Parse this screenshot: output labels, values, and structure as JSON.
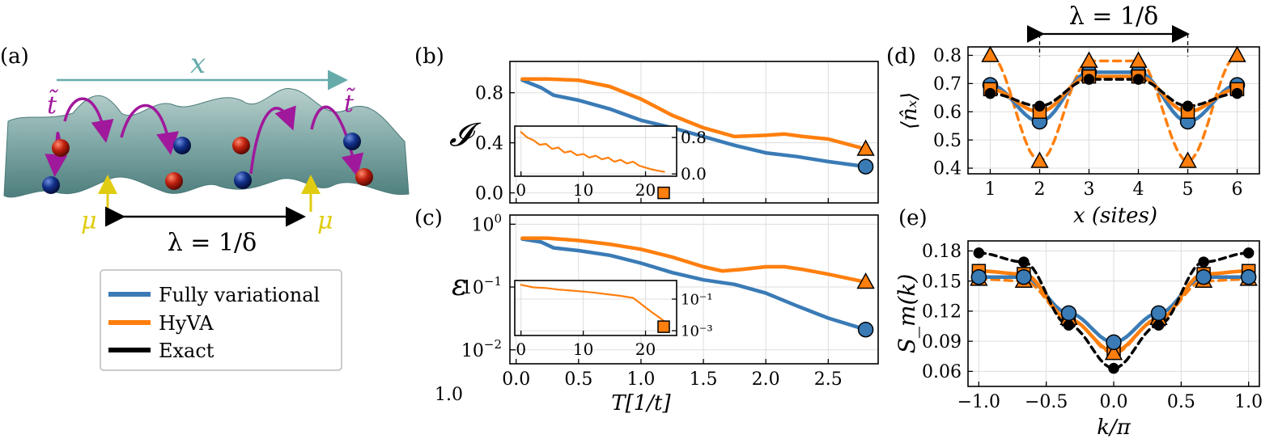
{
  "colors": {
    "fully_variational": "#3a7bb6",
    "hyva": "#ff7f0e",
    "exact": "#000000",
    "surface": "#7fa8a6",
    "x_arrow": "#66aaaa",
    "hopping": "#a0189c",
    "mu": "#e0cc10",
    "red_ball": "#c0200e",
    "blue_ball": "#12308a"
  },
  "panel_labels": {
    "a": "(a)",
    "b": "(b)",
    "c": "(c)",
    "d": "(d)",
    "e": "(e)"
  },
  "panel_a": {
    "x_label": "x",
    "hopping_label": "t̃",
    "mu_label": "μ",
    "wavelength_label": "λ = 1/δ",
    "legend": [
      "Fully variational",
      "HyVA",
      "Exact"
    ]
  },
  "stray_text": "1.0",
  "chart_data": [
    {
      "panel": "b",
      "type": "line",
      "ylabel": "𝓘",
      "xlim": [
        -0.05,
        2.9
      ],
      "ylim": [
        -0.08,
        1.05
      ],
      "yticks": [
        "0.0",
        "0.4",
        "0.8"
      ],
      "series": [
        {
          "name": "Fully variational",
          "x": [
            0.05,
            0.2,
            0.3,
            0.5,
            0.75,
            1.0,
            1.25,
            1.5,
            1.75,
            2.0,
            2.25,
            2.5,
            2.8
          ],
          "y": [
            0.9,
            0.84,
            0.78,
            0.74,
            0.67,
            0.58,
            0.52,
            0.45,
            0.38,
            0.32,
            0.29,
            0.25,
            0.21
          ]
        },
        {
          "name": "HyVA",
          "x": [
            0.05,
            0.25,
            0.5,
            0.75,
            1.0,
            1.25,
            1.5,
            1.75,
            2.0,
            2.15,
            2.3,
            2.5,
            2.8
          ],
          "y": [
            0.91,
            0.91,
            0.9,
            0.85,
            0.75,
            0.62,
            0.52,
            0.45,
            0.46,
            0.47,
            0.45,
            0.43,
            0.35
          ]
        }
      ],
      "end_markers": [
        {
          "series": "HyVA",
          "x": 2.8,
          "y": 0.35,
          "shape": "triangle"
        },
        {
          "series": "Fully variational",
          "x": 2.8,
          "y": 0.21,
          "shape": "circle"
        }
      ],
      "inset": {
        "xlim": [
          -1,
          25
        ],
        "ylim": [
          -0.05,
          1.05
        ],
        "xticks": [
          "0",
          "10",
          "20"
        ],
        "yticks": [
          "0.0",
          "0.8"
        ],
        "series": [
          {
            "name": "HyVA",
            "x": [
              0,
              1,
              2,
              3,
              4,
              5,
              6,
              7,
              8,
              9,
              10,
              11,
              12,
              13,
              14,
              15,
              16,
              17,
              18,
              19,
              20,
              21,
              22,
              23
            ],
            "y": [
              0.92,
              0.8,
              0.74,
              0.64,
              0.66,
              0.55,
              0.58,
              0.47,
              0.5,
              0.41,
              0.44,
              0.36,
              0.4,
              0.32,
              0.36,
              0.27,
              0.31,
              0.23,
              0.27,
              0.18,
              0.14,
              0.1,
              0.07,
              0.05
            ]
          }
        ],
        "end_marker": {
          "x": 23.5,
          "y": 0.04,
          "shape": "square"
        }
      }
    },
    {
      "panel": "c",
      "type": "line",
      "ylabel": "ε",
      "yscale": "log",
      "xlabel": "T[1/t]",
      "xlim": [
        -0.05,
        2.9
      ],
      "ylim": [
        0.006,
        1.4
      ],
      "xticks": [
        "0.0",
        "0.5",
        "1.0",
        "1.5",
        "2.0",
        "2.5"
      ],
      "series": [
        {
          "name": "Fully variational",
          "x": [
            0.05,
            0.2,
            0.3,
            0.5,
            0.75,
            1.0,
            1.25,
            1.5,
            1.75,
            2.0,
            2.25,
            2.5,
            2.8
          ],
          "y": [
            0.58,
            0.52,
            0.42,
            0.38,
            0.32,
            0.24,
            0.17,
            0.13,
            0.11,
            0.08,
            0.05,
            0.032,
            0.021
          ]
        },
        {
          "name": "HyVA",
          "x": [
            0.05,
            0.25,
            0.5,
            0.75,
            1.0,
            1.25,
            1.5,
            1.65,
            1.8,
            2.0,
            2.15,
            2.3,
            2.5,
            2.8
          ],
          "y": [
            0.6,
            0.6,
            0.55,
            0.48,
            0.4,
            0.3,
            0.21,
            0.18,
            0.19,
            0.21,
            0.21,
            0.19,
            0.16,
            0.12
          ]
        }
      ],
      "end_markers": [
        {
          "series": "HyVA",
          "x": 2.8,
          "y": 0.12,
          "shape": "triangle"
        },
        {
          "series": "Fully variational",
          "x": 2.8,
          "y": 0.021,
          "shape": "circle"
        }
      ],
      "inset": {
        "xlim": [
          -1,
          25
        ],
        "yscale": "log",
        "ylim": [
          0.0005,
          1.5
        ],
        "xticks": [
          "0",
          "10",
          "20"
        ],
        "yticks": [
          "10⁻¹",
          "10⁻³"
        ],
        "series": [
          {
            "name": "HyVA",
            "x": [
              0,
              2,
              4,
              6,
              8,
              10,
              12,
              14,
              16,
              18,
              19,
              20,
              21,
              22,
              23
            ],
            "y": [
              0.8,
              0.55,
              0.5,
              0.4,
              0.35,
              0.3,
              0.25,
              0.2,
              0.16,
              0.12,
              0.06,
              0.03,
              0.015,
              0.008,
              0.004
            ]
          }
        ],
        "end_marker": {
          "x": 23.5,
          "y": 0.0018,
          "shape": "square"
        }
      }
    },
    {
      "panel": "d",
      "type": "line",
      "ylabel": "⟨n̂ₓ⟩",
      "xlabel": "x (sites)",
      "annotation": "λ = 1/δ",
      "xlim": [
        0.55,
        6.45
      ],
      "ylim": [
        0.38,
        0.83
      ],
      "xticks": [
        "1",
        "2",
        "3",
        "4",
        "5",
        "6"
      ],
      "yticks": [
        "0.4",
        "0.5",
        "0.6",
        "0.7",
        "0.8"
      ],
      "x": [
        1,
        2,
        3,
        4,
        5,
        6
      ],
      "series": [
        {
          "name": "Fully variational",
          "marker": "circle",
          "y": [
            0.695,
            0.565,
            0.74,
            0.74,
            0.565,
            0.695
          ]
        },
        {
          "name": "HyVA",
          "marker": "square",
          "y": [
            0.68,
            0.6,
            0.725,
            0.725,
            0.6,
            0.68
          ]
        },
        {
          "name": "HyVA dashed",
          "marker": "triangle",
          "y": [
            0.8,
            0.425,
            0.78,
            0.78,
            0.425,
            0.8
          ]
        },
        {
          "name": "Exact",
          "marker": "circle-small",
          "y": [
            0.665,
            0.62,
            0.715,
            0.715,
            0.62,
            0.665
          ]
        }
      ]
    },
    {
      "panel": "e",
      "type": "line",
      "ylabel": "S_m(k)",
      "xlabel": "k/π",
      "xlim": [
        -1.08,
        1.08
      ],
      "ylim": [
        0.045,
        0.19
      ],
      "xticks": [
        "−1.0",
        "−0.5",
        "0.0",
        "0.5",
        "1.0"
      ],
      "yticks": [
        "0.06",
        "0.09",
        "0.12",
        "0.15",
        "0.18"
      ],
      "x": [
        -1.0,
        -0.6667,
        -0.3333,
        0.0,
        0.3333,
        0.6667,
        1.0
      ],
      "series": [
        {
          "name": "Fully variational",
          "marker": "circle",
          "y": [
            0.154,
            0.154,
            0.118,
            0.089,
            0.118,
            0.154,
            0.154
          ]
        },
        {
          "name": "HyVA",
          "marker": "square",
          "y": [
            0.16,
            0.157,
            0.112,
            0.08,
            0.112,
            0.157,
            0.16
          ]
        },
        {
          "name": "HyVA dashed",
          "marker": "triangle",
          "y": [
            0.152,
            0.15,
            0.113,
            0.078,
            0.113,
            0.15,
            0.152
          ]
        },
        {
          "name": "Exact",
          "marker": "circle-small",
          "y": [
            0.178,
            0.169,
            0.106,
            0.063,
            0.106,
            0.169,
            0.178
          ]
        }
      ]
    }
  ]
}
